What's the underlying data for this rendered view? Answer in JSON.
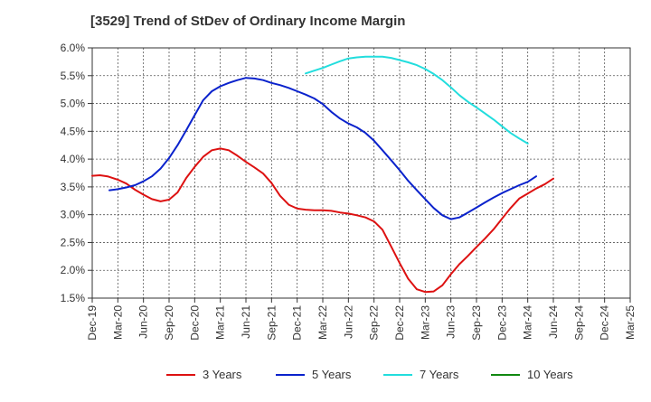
{
  "chart_data": {
    "type": "line",
    "title": "[3529]  Trend of StDev of Ordinary Income Margin",
    "xlabel": "",
    "ylabel": "",
    "x_tick_labels": [
      "Dec-19",
      "Mar-20",
      "Jun-20",
      "Sep-20",
      "Dec-20",
      "Mar-21",
      "Jun-21",
      "Sep-21",
      "Dec-21",
      "Mar-22",
      "Jun-22",
      "Sep-22",
      "Dec-22",
      "Mar-23",
      "Jun-23",
      "Sep-23",
      "Dec-23",
      "Mar-24",
      "Jun-24",
      "Sep-24",
      "Dec-24",
      "Mar-25"
    ],
    "y_tick_labels": [
      "1.5%",
      "2.0%",
      "2.5%",
      "3.0%",
      "3.5%",
      "4.0%",
      "4.5%",
      "5.0%",
      "5.5%",
      "6.0%"
    ],
    "ylim": [
      1.5,
      6.0
    ],
    "grid": true,
    "legend_position": "bottom",
    "series": [
      {
        "name": "3 Years",
        "color": "#dd1111",
        "points": [
          [
            0,
            3.7
          ],
          [
            0.3,
            3.71
          ],
          [
            0.6,
            3.69
          ],
          [
            1,
            3.63
          ],
          [
            1.33,
            3.56
          ],
          [
            1.67,
            3.45
          ],
          [
            2,
            3.36
          ],
          [
            2.33,
            3.28
          ],
          [
            2.67,
            3.24
          ],
          [
            3,
            3.27
          ],
          [
            3.33,
            3.4
          ],
          [
            3.67,
            3.66
          ],
          [
            4,
            3.86
          ],
          [
            4.33,
            4.04
          ],
          [
            4.67,
            4.16
          ],
          [
            5,
            4.19
          ],
          [
            5.33,
            4.16
          ],
          [
            5.67,
            4.06
          ],
          [
            6,
            3.95
          ],
          [
            6.33,
            3.85
          ],
          [
            6.67,
            3.74
          ],
          [
            7,
            3.57
          ],
          [
            7.33,
            3.34
          ],
          [
            7.67,
            3.18
          ],
          [
            8,
            3.11
          ],
          [
            8.33,
            3.09
          ],
          [
            8.67,
            3.08
          ],
          [
            9,
            3.08
          ],
          [
            9.33,
            3.07
          ],
          [
            9.67,
            3.04
          ],
          [
            10,
            3.02
          ],
          [
            10.33,
            2.99
          ],
          [
            10.67,
            2.95
          ],
          [
            11,
            2.88
          ],
          [
            11.33,
            2.73
          ],
          [
            11.67,
            2.43
          ],
          [
            12,
            2.13
          ],
          [
            12.33,
            1.85
          ],
          [
            12.67,
            1.66
          ],
          [
            13,
            1.61
          ],
          [
            13.33,
            1.62
          ],
          [
            13.67,
            1.73
          ],
          [
            14,
            1.93
          ],
          [
            14.33,
            2.11
          ],
          [
            14.67,
            2.26
          ],
          [
            15,
            2.42
          ],
          [
            15.33,
            2.57
          ],
          [
            15.67,
            2.74
          ],
          [
            16,
            2.93
          ],
          [
            16.33,
            3.12
          ],
          [
            16.67,
            3.29
          ],
          [
            17,
            3.38
          ],
          [
            17.33,
            3.47
          ],
          [
            17.67,
            3.55
          ],
          [
            18,
            3.65
          ]
        ]
      },
      {
        "name": "5 Years",
        "color": "#0a22cc",
        "points": [
          [
            0.67,
            3.44
          ],
          [
            1,
            3.46
          ],
          [
            1.33,
            3.49
          ],
          [
            1.67,
            3.53
          ],
          [
            2,
            3.6
          ],
          [
            2.33,
            3.69
          ],
          [
            2.67,
            3.83
          ],
          [
            3,
            4.02
          ],
          [
            3.33,
            4.25
          ],
          [
            3.67,
            4.52
          ],
          [
            4,
            4.79
          ],
          [
            4.33,
            5.06
          ],
          [
            4.67,
            5.22
          ],
          [
            5,
            5.31
          ],
          [
            5.33,
            5.37
          ],
          [
            5.67,
            5.42
          ],
          [
            6,
            5.46
          ],
          [
            6.33,
            5.45
          ],
          [
            6.67,
            5.42
          ],
          [
            7,
            5.37
          ],
          [
            7.33,
            5.33
          ],
          [
            7.67,
            5.28
          ],
          [
            8,
            5.22
          ],
          [
            8.33,
            5.16
          ],
          [
            8.67,
            5.09
          ],
          [
            9,
            4.99
          ],
          [
            9.33,
            4.85
          ],
          [
            9.67,
            4.73
          ],
          [
            10,
            4.64
          ],
          [
            10.33,
            4.57
          ],
          [
            10.67,
            4.47
          ],
          [
            11,
            4.33
          ],
          [
            11.33,
            4.16
          ],
          [
            11.67,
            3.98
          ],
          [
            12,
            3.8
          ],
          [
            12.33,
            3.61
          ],
          [
            12.67,
            3.44
          ],
          [
            13,
            3.28
          ],
          [
            13.33,
            3.12
          ],
          [
            13.67,
            2.99
          ],
          [
            14,
            2.92
          ],
          [
            14.33,
            2.95
          ],
          [
            14.67,
            3.04
          ],
          [
            15,
            3.13
          ],
          [
            15.33,
            3.22
          ],
          [
            15.67,
            3.31
          ],
          [
            16,
            3.39
          ],
          [
            16.33,
            3.46
          ],
          [
            16.67,
            3.53
          ],
          [
            17,
            3.59
          ],
          [
            17.33,
            3.69
          ]
        ]
      },
      {
        "name": "7 Years",
        "color": "#22dddd",
        "points": [
          [
            8.33,
            5.54
          ],
          [
            8.67,
            5.59
          ],
          [
            9,
            5.64
          ],
          [
            9.33,
            5.7
          ],
          [
            9.67,
            5.76
          ],
          [
            10,
            5.81
          ],
          [
            10.33,
            5.83
          ],
          [
            10.67,
            5.84
          ],
          [
            11,
            5.84
          ],
          [
            11.33,
            5.84
          ],
          [
            11.67,
            5.82
          ],
          [
            12,
            5.78
          ],
          [
            12.33,
            5.74
          ],
          [
            12.67,
            5.69
          ],
          [
            13,
            5.62
          ],
          [
            13.33,
            5.53
          ],
          [
            13.67,
            5.42
          ],
          [
            14,
            5.29
          ],
          [
            14.33,
            5.15
          ],
          [
            14.67,
            5.03
          ],
          [
            15,
            4.93
          ],
          [
            15.33,
            4.82
          ],
          [
            15.67,
            4.71
          ],
          [
            16,
            4.59
          ],
          [
            16.33,
            4.47
          ],
          [
            16.67,
            4.37
          ],
          [
            17,
            4.28
          ]
        ]
      },
      {
        "name": "10 Years",
        "color": "#118811",
        "points": []
      }
    ]
  }
}
